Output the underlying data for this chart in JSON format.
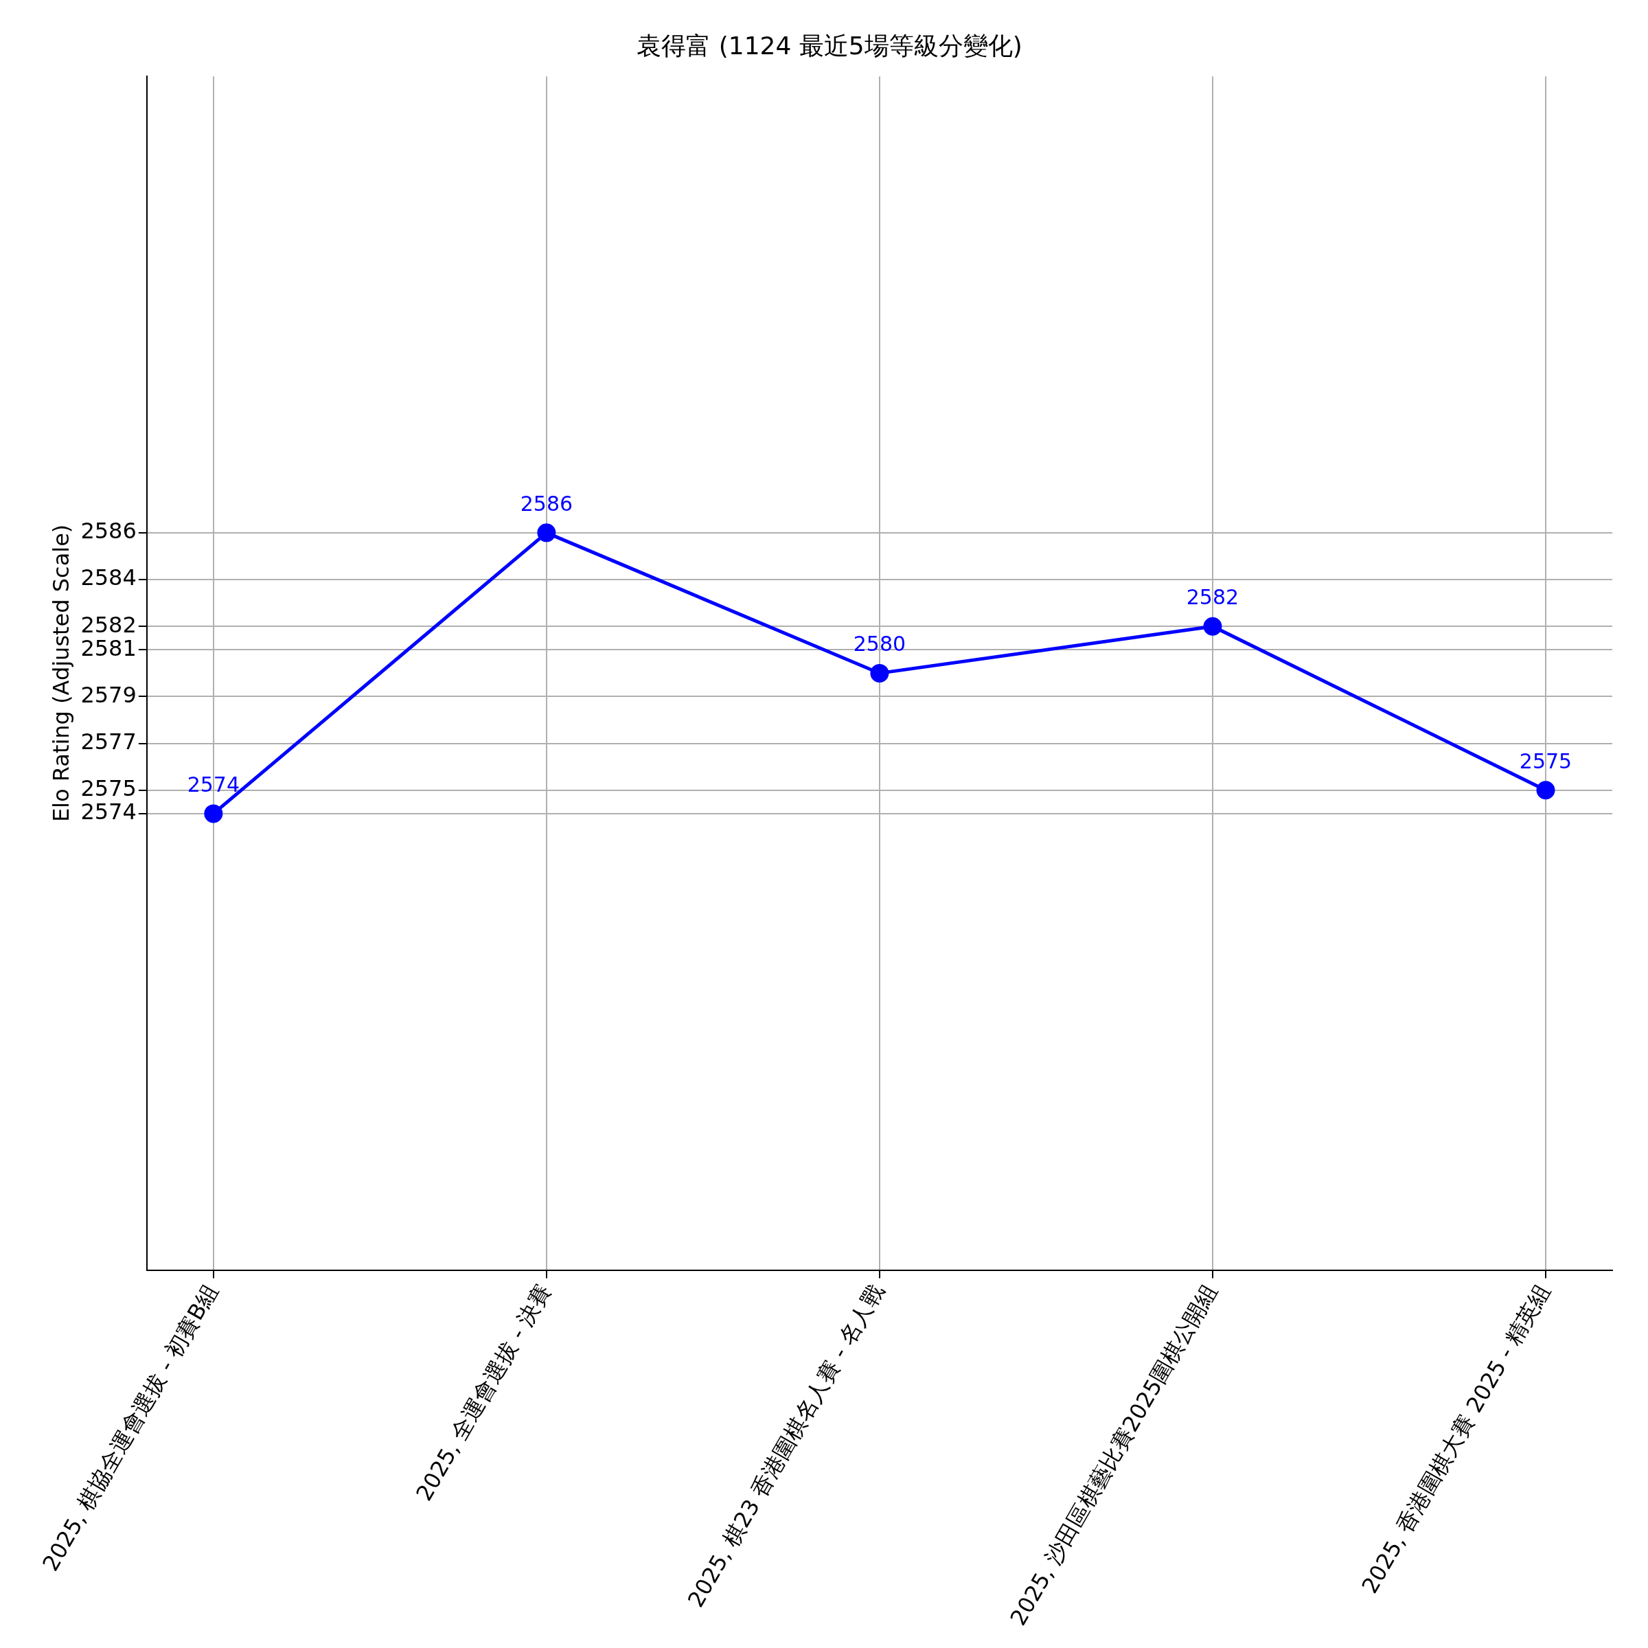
{
  "chart_data": {
    "type": "line",
    "title": "袁得富 (1124 最近5場等級分變化)",
    "ylabel": "Elo Rating (Adjusted Scale)",
    "categories": [
      "2025, 棋協全運會選拔 - 初賽B組",
      "2025, 全運會選拔 - 決賽",
      "2025, 棋23 香港圍棋名人賽 - 名人戰",
      "2025, 沙田區棋藝比賽2025圍棋公開組",
      "2025, 香港圍棋大賽 2025 - 精英組"
    ],
    "series": [
      {
        "color": "#0000ff",
        "values": [
          2574,
          2586,
          2580,
          2582,
          2575
        ],
        "value_labels": [
          "2574",
          "2586",
          "2580",
          "2582",
          "2575"
        ]
      }
    ],
    "ylim": [
      2554.5,
      2605.5
    ],
    "yticks": [
      2574,
      2575,
      2577,
      2579,
      2581,
      2582,
      2584,
      2586
    ],
    "grid": true,
    "marker": "circle",
    "line_style": "solid",
    "legend": false
  }
}
